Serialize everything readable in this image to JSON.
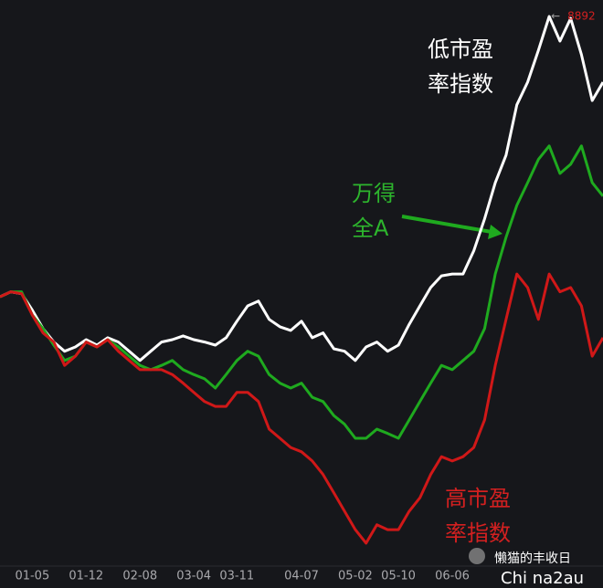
{
  "chart_data": {
    "type": "line",
    "categories": [
      null,
      null,
      null,
      "01-05",
      null,
      null,
      null,
      null,
      "01-12",
      null,
      null,
      null,
      null,
      "02-08",
      null,
      null,
      null,
      null,
      "03-04",
      null,
      null,
      null,
      "03-11",
      null,
      null,
      null,
      null,
      null,
      "04-07",
      null,
      null,
      null,
      null,
      "05-02",
      null,
      null,
      null,
      "05-10",
      null,
      null,
      null,
      null,
      "06-06",
      null,
      null,
      null,
      null,
      null,
      null,
      null,
      null,
      null,
      null,
      null,
      null,
      null,
      null
    ],
    "ylim": [
      0,
      9160
    ],
    "series": [
      {
        "name": [
          "低市盈",
          "率指数"
        ],
        "color": "#ffffff",
        "values": [
          4320,
          4400,
          4370,
          4100,
          3800,
          3580,
          3430,
          3500,
          3620,
          3530,
          3650,
          3580,
          3430,
          3280,
          3430,
          3580,
          3620,
          3680,
          3620,
          3580,
          3530,
          3650,
          3920,
          4170,
          4250,
          3950,
          3830,
          3770,
          3920,
          3650,
          3730,
          3470,
          3430,
          3280,
          3500,
          3580,
          3430,
          3530,
          3870,
          4170,
          4470,
          4660,
          4690,
          4690,
          5070,
          5590,
          6180,
          6630,
          7450,
          7820,
          8340,
          8892,
          8490,
          8860,
          8270,
          7520,
          7820
        ]
      },
      {
        "name": [
          "万得",
          "全A"
        ],
        "color": "#1faa1f",
        "values": [
          4320,
          4400,
          4400,
          4020,
          3800,
          3530,
          3280,
          3350,
          3580,
          3500,
          3620,
          3500,
          3350,
          3200,
          3130,
          3200,
          3280,
          3130,
          3050,
          2980,
          2830,
          3050,
          3280,
          3430,
          3350,
          3050,
          2910,
          2830,
          2910,
          2680,
          2610,
          2380,
          2240,
          2010,
          2010,
          2160,
          2090,
          2010,
          2310,
          2610,
          2910,
          3200,
          3130,
          3280,
          3430,
          3800,
          4690,
          5290,
          5810,
          6180,
          6560,
          6780,
          6330,
          6480,
          6780,
          6180,
          5960
        ]
      },
      {
        "name": [
          "高市盈",
          "率指数"
        ],
        "color": "#d01818",
        "values": [
          4320,
          4400,
          4370,
          4020,
          3730,
          3580,
          3200,
          3350,
          3580,
          3500,
          3620,
          3430,
          3280,
          3130,
          3130,
          3130,
          3050,
          2910,
          2760,
          2610,
          2530,
          2530,
          2760,
          2760,
          2610,
          2160,
          2010,
          1860,
          1790,
          1640,
          1420,
          1120,
          820,
          520,
          300,
          600,
          520,
          520,
          820,
          1040,
          1420,
          1710,
          1640,
          1710,
          1860,
          2310,
          3200,
          3950,
          4690,
          4470,
          3950,
          4690,
          4400,
          4470,
          4170,
          3350,
          3650
        ]
      }
    ],
    "max_marker": {
      "arrow": "←"
    },
    "watermark": {
      "account": "懒猫的丰收日",
      "text": "Chi na2au"
    }
  }
}
